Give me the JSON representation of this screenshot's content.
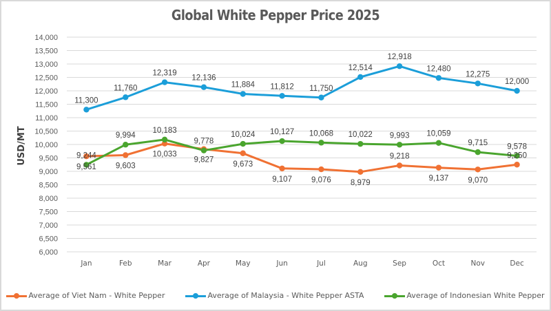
{
  "chart_data": {
    "type": "line",
    "title": "Global White Pepper Price 2025",
    "xlabel": "",
    "ylabel": "USD/MT",
    "ylim": [
      6000,
      14000
    ],
    "ytick_step": 500,
    "yticks": [
      "6,000",
      "6,500",
      "7,000",
      "7,500",
      "8,000",
      "8,500",
      "9,000",
      "9,500",
      "10,000",
      "10,500",
      "11,000",
      "11,500",
      "12,000",
      "12,500",
      "13,000",
      "13,500",
      "14,000"
    ],
    "grid": true,
    "legend_position": "bottom",
    "categories": [
      "Jan",
      "Feb",
      "Mar",
      "Apr",
      "May",
      "Jun",
      "Jul",
      "Aug",
      "Sep",
      "Oct",
      "Nov",
      "Dec"
    ],
    "series": [
      {
        "name": "Average of Viet Nam - White Pepper",
        "color": "#f07133",
        "values": [
          9561,
          9603,
          10033,
          9827,
          9673,
          9107,
          9076,
          8979,
          9218,
          9137,
          9070,
          9250
        ],
        "labels": [
          "9,561",
          "9,603",
          "10,033",
          "9,827",
          "9,673",
          "9,107",
          "9,076",
          "8,979",
          "9,218",
          "9,137",
          "9,070",
          "9,250"
        ],
        "label_side": [
          "below",
          "below",
          "below",
          "below",
          "below",
          "below",
          "below",
          "below",
          "above",
          "below",
          "below",
          "above"
        ]
      },
      {
        "name": "Average of Malaysia - White Pepper ASTA",
        "color": "#1b9ed9",
        "values": [
          11300,
          11760,
          12319,
          12136,
          11884,
          11812,
          11750,
          12514,
          12918,
          12480,
          12275,
          12000
        ],
        "labels": [
          "11,300",
          "11,760",
          "12,319",
          "12,136",
          "11,884",
          "11,812",
          "11,750",
          "12,514",
          "12,918",
          "12,480",
          "12,275",
          "12,000"
        ],
        "label_side": [
          "above",
          "above",
          "above",
          "above",
          "above",
          "above",
          "above",
          "above",
          "above",
          "above",
          "above",
          "above"
        ]
      },
      {
        "name": "Average of Indonesian White Pepper",
        "color": "#4aa52e",
        "values": [
          9244,
          9994,
          10183,
          9778,
          10024,
          10127,
          10068,
          10022,
          9993,
          10059,
          9715,
          9578
        ],
        "labels": [
          "9,244",
          "9,994",
          "10,183",
          "9,778",
          "10,024",
          "10,127",
          "10,068",
          "10,022",
          "9,993",
          "10,059",
          "9,715",
          "9,578"
        ],
        "label_side": [
          "above",
          "above",
          "above",
          "above",
          "above",
          "above",
          "above",
          "above",
          "above",
          "above",
          "above",
          "above"
        ]
      }
    ]
  }
}
